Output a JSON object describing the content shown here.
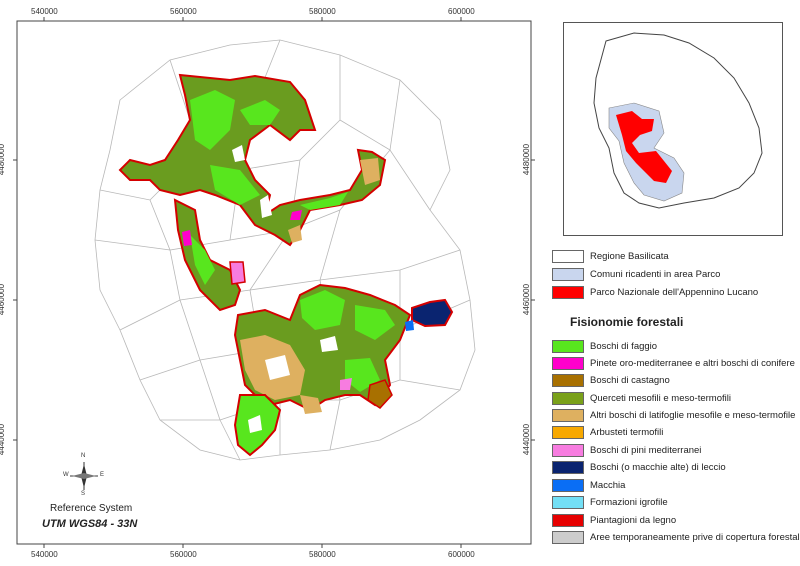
{
  "axes": {
    "x_ticks": [
      "540000",
      "560000",
      "580000",
      "600000"
    ],
    "y_ticks": [
      "4480000",
      "4460000",
      "4440000"
    ]
  },
  "inset_legend": [
    {
      "label": "Regione Basilicata",
      "color": "#ffffff"
    },
    {
      "label": "Comuni ricadenti in area Parco",
      "color": "#c9d6ee"
    },
    {
      "label": "Parco Nazionale dell'Appennino Lucano",
      "color": "#ff0000"
    }
  ],
  "legend_title": "Fisionomie forestali",
  "forest_legend": [
    {
      "label": "Boschi di faggio",
      "color": "#58e61e"
    },
    {
      "label": "Pinete oro-mediterranee e altri boschi di conifere",
      "color": "#ff00cc"
    },
    {
      "label": "Boschi di castagno",
      "color": "#a87000"
    },
    {
      "label": "Querceti mesofili e meso-termofili",
      "color": "#7aa11a"
    },
    {
      "label": "Altri boschi di latifoglie mesofile e meso-termofile",
      "color": "#deb060"
    },
    {
      "label": "Arbusteti termofili",
      "color": "#f7a800"
    },
    {
      "label": "Boschi di pini mediterranei",
      "color": "#f77ce0"
    },
    {
      "label": "Boschi (o macchie alte) di leccio",
      "color": "#0a2470"
    },
    {
      "label": "Macchia",
      "color": "#0a6ef5"
    },
    {
      "label": "Formazioni igrofile",
      "color": "#73dff5"
    },
    {
      "label": "Piantagioni da legno",
      "color": "#e60000"
    },
    {
      "label": "Aree temporaneamente prive di copertura forestale",
      "color": "#cccccc"
    }
  ],
  "compass": {
    "n": "N",
    "s": "S",
    "e": "E",
    "w": "W"
  },
  "reference_system": "Reference System",
  "utm": "UTM WGS84 - 33N"
}
